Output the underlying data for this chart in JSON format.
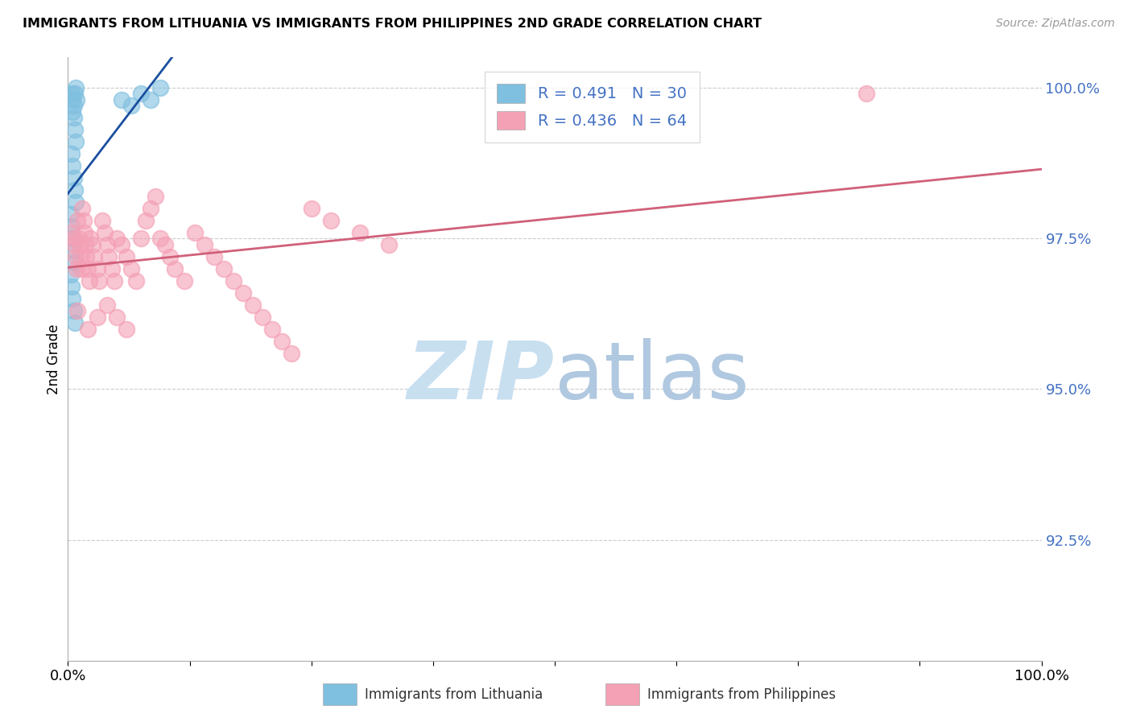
{
  "title": "IMMIGRANTS FROM LITHUANIA VS IMMIGRANTS FROM PHILIPPINES 2ND GRADE CORRELATION CHART",
  "source": "Source: ZipAtlas.com",
  "ylabel": "2nd Grade",
  "ytick_labels": [
    "100.0%",
    "97.5%",
    "95.0%",
    "92.5%"
  ],
  "ytick_values": [
    1.0,
    0.975,
    0.95,
    0.925
  ],
  "xlim": [
    0.0,
    1.0
  ],
  "ylim": [
    0.905,
    1.005
  ],
  "legend_r1": "R = 0.491",
  "legend_n1": "N = 30",
  "legend_r2": "R = 0.436",
  "legend_n2": "N = 64",
  "color_lithuania": "#7fbfdf",
  "color_philippines": "#f4a0b5",
  "color_line_lithuania": "#1a4fa0",
  "color_line_philippines": "#d0607a",
  "watermark_zip": "ZIP",
  "watermark_atlas": "atlas",
  "watermark_color_zip": "#c8dff0",
  "watermark_color_atlas": "#b0c8e0",
  "lith_x": [
    0.004,
    0.005,
    0.006,
    0.007,
    0.008,
    0.009,
    0.005,
    0.006,
    0.007,
    0.008,
    0.004,
    0.005,
    0.006,
    0.007,
    0.008,
    0.003,
    0.004,
    0.005,
    0.006,
    0.007,
    0.003,
    0.004,
    0.005,
    0.006,
    0.007,
    0.055,
    0.065,
    0.075,
    0.085,
    0.095
  ],
  "lith_y": [
    0.999,
    0.998,
    0.997,
    0.999,
    1.0,
    0.998,
    0.996,
    0.995,
    0.993,
    0.991,
    0.989,
    0.987,
    0.985,
    0.983,
    0.981,
    0.979,
    0.977,
    0.975,
    0.973,
    0.971,
    0.969,
    0.967,
    0.965,
    0.963,
    0.961,
    0.998,
    0.997,
    0.999,
    0.998,
    1.0
  ],
  "phil_x": [
    0.004,
    0.006,
    0.007,
    0.008,
    0.009,
    0.01,
    0.011,
    0.012,
    0.013,
    0.014,
    0.015,
    0.016,
    0.017,
    0.018,
    0.019,
    0.02,
    0.022,
    0.023,
    0.025,
    0.027,
    0.03,
    0.032,
    0.035,
    0.038,
    0.04,
    0.042,
    0.045,
    0.048,
    0.05,
    0.055,
    0.06,
    0.065,
    0.07,
    0.075,
    0.08,
    0.085,
    0.09,
    0.095,
    0.1,
    0.105,
    0.11,
    0.12,
    0.13,
    0.14,
    0.15,
    0.16,
    0.17,
    0.18,
    0.19,
    0.2,
    0.21,
    0.22,
    0.23,
    0.25,
    0.27,
    0.3,
    0.33,
    0.01,
    0.02,
    0.03,
    0.04,
    0.05,
    0.06,
    0.82
  ],
  "phil_y": [
    0.976,
    0.975,
    0.974,
    0.972,
    0.97,
    0.978,
    0.975,
    0.974,
    0.972,
    0.97,
    0.98,
    0.978,
    0.976,
    0.974,
    0.972,
    0.97,
    0.968,
    0.975,
    0.974,
    0.972,
    0.97,
    0.968,
    0.978,
    0.976,
    0.974,
    0.972,
    0.97,
    0.968,
    0.975,
    0.974,
    0.972,
    0.97,
    0.968,
    0.975,
    0.978,
    0.98,
    0.982,
    0.975,
    0.974,
    0.972,
    0.97,
    0.968,
    0.976,
    0.974,
    0.972,
    0.97,
    0.968,
    0.966,
    0.964,
    0.962,
    0.96,
    0.958,
    0.956,
    0.98,
    0.978,
    0.976,
    0.974,
    0.963,
    0.96,
    0.962,
    0.964,
    0.962,
    0.96,
    0.999
  ]
}
